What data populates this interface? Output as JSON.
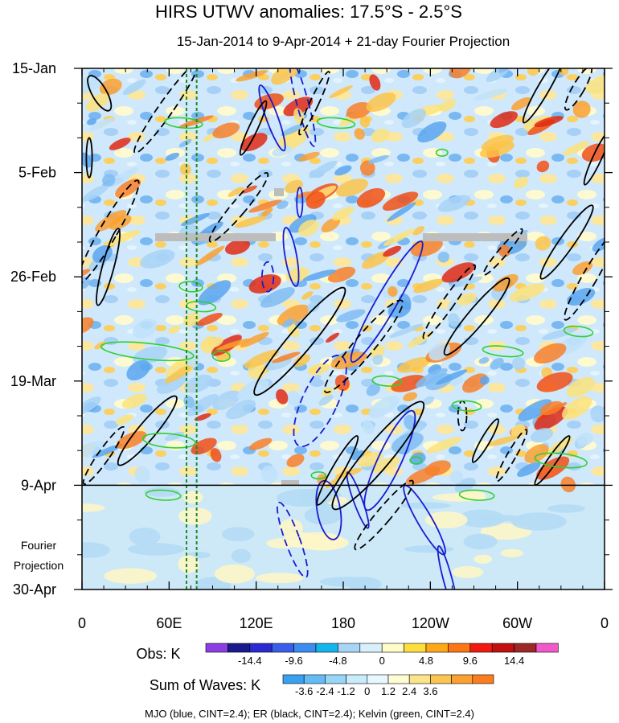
{
  "chart_data": {
    "type": "heatmap",
    "title": "HIRS UTWV anomalies: 17.5°S - 2.5°S",
    "subtitle": "15-Jan-2014 to 9-Apr-2014 + 21-day Fourier Projection",
    "x_tick_labels": [
      "0",
      "60E",
      "120E",
      "180",
      "120W",
      "60W",
      "0"
    ],
    "x_ticks_deg": [
      0,
      60,
      120,
      180,
      240,
      300,
      360
    ],
    "y_tick_labels": [
      "15-Jan",
      "5-Feb",
      "26-Feb",
      "19-Mar",
      "9-Apr",
      "30-Apr"
    ],
    "y_ticks_day": [
      0,
      21,
      42,
      63,
      84,
      105
    ],
    "ylim_days": [
      0,
      105
    ],
    "xlim_deg": [
      0,
      360
    ],
    "observation_end_day": 84,
    "projection_label": [
      "Fourier",
      "Projection"
    ],
    "reference_longitudes_deg": [
      72,
      79
    ],
    "grid": false,
    "obs_colorbar": {
      "label": "Obs: K",
      "colors": [
        "#8c3fe0",
        "#1a1a8c",
        "#2a2ad0",
        "#3a5ee8",
        "#3c8cf0",
        "#14b4ec",
        "#a8d4f6",
        "#d8f0fc",
        "#fffcc8",
        "#fcde3e",
        "#fca818",
        "#fc7618",
        "#f01a10",
        "#c01010",
        "#9c2828",
        "#f05ac8"
      ],
      "tick_labels": [
        "-14.4",
        "-9.6",
        "-4.8",
        "0",
        "4.8",
        "9.6",
        "14.4"
      ]
    },
    "waves_colorbar": {
      "label": "Sum of Waves: K",
      "colors": [
        "#3aa0f0",
        "#64bcf4",
        "#98d6f8",
        "#c8ecfc",
        "#e8f8ff",
        "#fffcd4",
        "#fce48a",
        "#fcc450",
        "#fca030",
        "#fc7c20"
      ],
      "tick_labels": [
        "-3.6",
        "-2.4",
        "-1.2",
        "0",
        "1.2",
        "2.4",
        "3.6"
      ]
    },
    "caption": "MJO (blue, CINT=2.4); ER (black, CINT=2.4); Kelvin (green, CINT=2.4)",
    "series": [
      {
        "name": "MJO",
        "color": "#1a1ad0",
        "contours": [
          {
            "lon": 152,
            "day": 7,
            "rx": 4,
            "ry": 9,
            "ang": -15,
            "neg": true
          },
          {
            "lon": 131,
            "day": 10,
            "rx": 4,
            "ry": 7,
            "ang": -20,
            "neg": false
          },
          {
            "lon": 150,
            "day": 27,
            "rx": 2,
            "ry": 3,
            "ang": 0,
            "neg": false
          },
          {
            "lon": 144,
            "day": 38,
            "rx": 4,
            "ry": 6,
            "ang": -10,
            "neg": false
          },
          {
            "lon": 128,
            "day": 42,
            "rx": 4,
            "ry": 3,
            "ang": 0,
            "neg": true
          },
          {
            "lon": 210,
            "day": 47,
            "rx": 7,
            "ry": 14,
            "ang": 30,
            "neg": false
          },
          {
            "lon": 212,
            "day": 79,
            "rx": 8,
            "ry": 11,
            "ang": 25,
            "neg": false
          },
          {
            "lon": 170,
            "day": 89,
            "rx": 8,
            "ry": 6,
            "ang": -10,
            "neg": false
          },
          {
            "lon": 145,
            "day": 95,
            "rx": 5,
            "ry": 8,
            "ang": -20,
            "neg": true
          },
          {
            "lon": 236,
            "day": 91,
            "rx": 5,
            "ry": 8,
            "ang": -30,
            "neg": false
          },
          {
            "lon": 252,
            "day": 103,
            "rx": 3,
            "ry": 7,
            "ang": -15,
            "neg": false
          },
          {
            "lon": 164,
            "day": 67,
            "rx": 12,
            "ry": 10,
            "ang": 25,
            "neg": true
          },
          {
            "lon": 190,
            "day": 87,
            "rx": 3,
            "ry": 6,
            "ang": -20,
            "neg": false
          }
        ]
      },
      {
        "name": "ER",
        "color": "#000000",
        "contours": [
          {
            "lon": 12,
            "day": 5,
            "rx": 5,
            "ry": 4,
            "ang": -30,
            "neg": false
          },
          {
            "lon": 58,
            "day": 8,
            "rx": 5,
            "ry": 11,
            "ang": 35,
            "neg": true
          },
          {
            "lon": 118,
            "day": 12,
            "rx": 3,
            "ry": 6,
            "ang": 25,
            "neg": false
          },
          {
            "lon": 160,
            "day": 7,
            "rx": 3,
            "ry": 7,
            "ang": 25,
            "neg": true
          },
          {
            "lon": 318,
            "day": 4,
            "rx": 4,
            "ry": 8,
            "ang": 30,
            "neg": false
          },
          {
            "lon": 342,
            "day": 4,
            "rx": 4,
            "ry": 5,
            "ang": 30,
            "neg": true
          },
          {
            "lon": 355,
            "day": 18,
            "rx": 3,
            "ry": 6,
            "ang": 25,
            "neg": false
          },
          {
            "lon": 5,
            "day": 18,
            "rx": 2,
            "ry": 4,
            "ang": 0,
            "neg": false
          },
          {
            "lon": 18,
            "day": 33,
            "rx": 6,
            "ry": 12,
            "ang": 30,
            "neg": true
          },
          {
            "lon": 18,
            "day": 40,
            "rx": 4,
            "ry": 8,
            "ang": 15,
            "neg": false
          },
          {
            "lon": 108,
            "day": 28,
            "rx": 5,
            "ry": 9,
            "ang": 40,
            "neg": true
          },
          {
            "lon": 150,
            "day": 55,
            "rx": 8,
            "ry": 14,
            "ang": 40,
            "neg": false
          },
          {
            "lon": 194,
            "day": 56,
            "rx": 7,
            "ry": 12,
            "ang": 40,
            "neg": true
          },
          {
            "lon": 253,
            "day": 47,
            "rx": 4,
            "ry": 9,
            "ang": 35,
            "neg": true
          },
          {
            "lon": 272,
            "day": 50,
            "rx": 6,
            "ry": 10,
            "ang": 40,
            "neg": false
          },
          {
            "lon": 290,
            "day": 37,
            "rx": 3,
            "ry": 6,
            "ang": 40,
            "neg": true
          },
          {
            "lon": 334,
            "day": 35,
            "rx": 5,
            "ry": 9,
            "ang": 35,
            "neg": false
          },
          {
            "lon": 350,
            "day": 42,
            "rx": 5,
            "ry": 10,
            "ang": 30,
            "neg": true
          },
          {
            "lon": 204,
            "day": 78,
            "rx": 9,
            "ry": 14,
            "ang": 40,
            "neg": false
          },
          {
            "lon": 208,
            "day": 90,
            "rx": 5,
            "ry": 9,
            "ang": 40,
            "neg": true
          },
          {
            "lon": 45,
            "day": 73,
            "rx": 6,
            "ry": 9,
            "ang": 40,
            "neg": false
          },
          {
            "lon": 15,
            "day": 78,
            "rx": 4,
            "ry": 7,
            "ang": 35,
            "neg": true
          },
          {
            "lon": 262,
            "day": 70,
            "rx": 3,
            "ry": 3,
            "ang": 0,
            "neg": true
          },
          {
            "lon": 278,
            "day": 75,
            "rx": 3,
            "ry": 5,
            "ang": 30,
            "neg": false
          },
          {
            "lon": 296,
            "day": 78,
            "rx": 3,
            "ry": 6,
            "ang": 30,
            "neg": true
          },
          {
            "lon": 324,
            "day": 79,
            "rx": 3,
            "ry": 6,
            "ang": 35,
            "neg": false
          },
          {
            "lon": 176,
            "day": 81,
            "rx": 4,
            "ry": 8,
            "ang": 30,
            "neg": false
          }
        ]
      },
      {
        "name": "Kelvin",
        "color": "#30d030",
        "contours": [
          {
            "lon": 70,
            "day": 11,
            "rx": 13,
            "ry": 1,
            "ang": 5,
            "neg": false
          },
          {
            "lon": 175,
            "day": 11,
            "rx": 13,
            "ry": 1,
            "ang": 5,
            "neg": false
          },
          {
            "lon": 75,
            "day": 44,
            "rx": 8,
            "ry": 1,
            "ang": 5,
            "neg": false
          },
          {
            "lon": 82,
            "day": 48,
            "rx": 10,
            "ry": 1,
            "ang": 5,
            "neg": false
          },
          {
            "lon": 45,
            "day": 57,
            "rx": 32,
            "ry": 1.6,
            "ang": 6,
            "neg": false
          },
          {
            "lon": 96,
            "day": 58,
            "rx": 6,
            "ry": 1,
            "ang": 4,
            "neg": false
          },
          {
            "lon": 290,
            "day": 57,
            "rx": 14,
            "ry": 1,
            "ang": 6,
            "neg": false
          },
          {
            "lon": 342,
            "day": 53,
            "rx": 10,
            "ry": 1,
            "ang": 6,
            "neg": false
          },
          {
            "lon": 210,
            "day": 63,
            "rx": 10,
            "ry": 1,
            "ang": 4,
            "neg": false
          },
          {
            "lon": 265,
            "day": 68,
            "rx": 10,
            "ry": 1,
            "ang": 4,
            "neg": false
          },
          {
            "lon": 60,
            "day": 75,
            "rx": 18,
            "ry": 1.4,
            "ang": 5,
            "neg": false
          },
          {
            "lon": 330,
            "day": 79,
            "rx": 18,
            "ry": 1.4,
            "ang": 6,
            "neg": false
          },
          {
            "lon": 56,
            "day": 86,
            "rx": 12,
            "ry": 1,
            "ang": 3,
            "neg": false
          },
          {
            "lon": 272,
            "day": 86,
            "rx": 12,
            "ry": 1,
            "ang": 3,
            "neg": false
          },
          {
            "lon": 230,
            "day": 79,
            "rx": 4,
            "ry": 0.7,
            "ang": 0,
            "neg": false
          },
          {
            "lon": 248,
            "day": 17,
            "rx": 4,
            "ry": 0.7,
            "ang": 0,
            "neg": false
          },
          {
            "lon": 163,
            "day": 82,
            "rx": 5,
            "ry": 0.7,
            "ang": 0,
            "neg": false
          }
        ]
      }
    ]
  }
}
